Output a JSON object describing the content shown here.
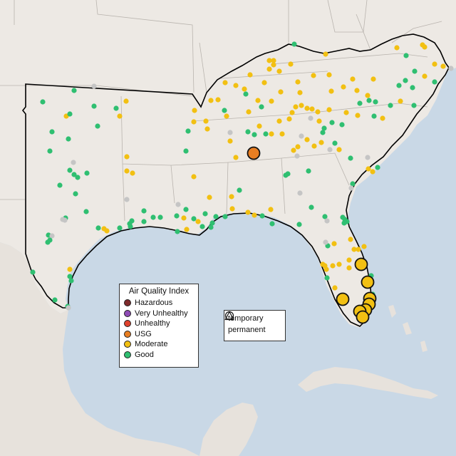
{
  "legend": {
    "title": "Air Quality Index",
    "categories": [
      {
        "label": "Hazardous",
        "color": "#7e2b2b"
      },
      {
        "label": "Very Unhealthy",
        "color": "#8e4bb5"
      },
      {
        "label": "Unhealthy",
        "color": "#e0412c"
      },
      {
        "label": "USG",
        "color": "#e87e22"
      },
      {
        "label": "Moderate",
        "color": "#f2c012"
      },
      {
        "label": "Good",
        "color": "#2fbf71"
      }
    ]
  },
  "monitor_types": [
    "temporary",
    "permanent"
  ],
  "colors": {
    "water": "#c9d8e6",
    "land": "#ede9e4",
    "no_data": "#c5c5c5"
  }
}
